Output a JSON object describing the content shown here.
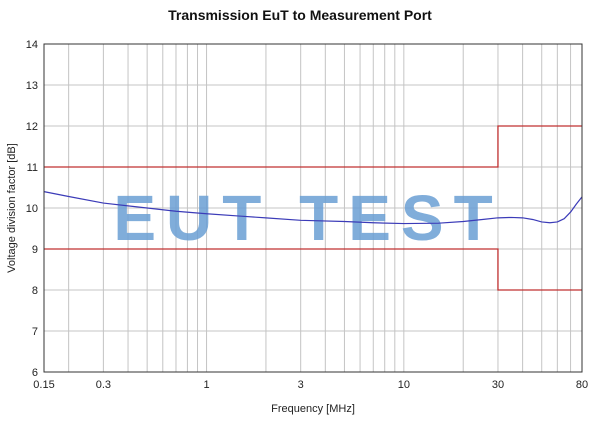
{
  "chart_data": {
    "type": "line",
    "title": "Transmission EuT to Measurement Port",
    "xlabel": "Frequency [MHz]",
    "ylabel": "Voltage division factor [dB]",
    "x_scale": "log",
    "xlim": [
      0.15,
      80
    ],
    "ylim": [
      6,
      14
    ],
    "grid": true,
    "x_ticks": [
      0.15,
      0.3,
      1,
      3,
      10,
      30,
      80
    ],
    "x_tick_labels": [
      "0.15",
      "0.3",
      "1",
      "3",
      "10",
      "30",
      "80"
    ],
    "y_ticks": [
      6,
      7,
      8,
      9,
      10,
      11,
      12,
      13,
      14
    ],
    "y_tick_labels": [
      "6",
      "7",
      "8",
      "9",
      "10",
      "11",
      "12",
      "13",
      "14"
    ],
    "series": [
      {
        "color": "#3b3bb8",
        "x": [
          0.15,
          0.2,
          0.3,
          0.5,
          0.7,
          1,
          1.5,
          2,
          3,
          5,
          7,
          10,
          15,
          20,
          25,
          30,
          35,
          40,
          45,
          50,
          55,
          60,
          65,
          70,
          75,
          80
        ],
        "y": [
          10.4,
          10.28,
          10.12,
          10.0,
          9.92,
          9.86,
          9.8,
          9.76,
          9.7,
          9.67,
          9.64,
          9.62,
          9.63,
          9.67,
          9.72,
          9.76,
          9.77,
          9.76,
          9.72,
          9.66,
          9.64,
          9.66,
          9.74,
          9.9,
          10.1,
          10.27
        ]
      }
    ],
    "limit_lines": [
      {
        "color": "#c03030",
        "x": [
          0.15,
          30,
          30,
          80
        ],
        "y": [
          11,
          11,
          12,
          12
        ]
      },
      {
        "color": "#c03030",
        "x": [
          0.15,
          30,
          30,
          80
        ],
        "y": [
          9,
          9,
          8,
          8
        ]
      }
    ],
    "watermark": "EUT TEST",
    "watermark_color": "#6a9fd4"
  }
}
